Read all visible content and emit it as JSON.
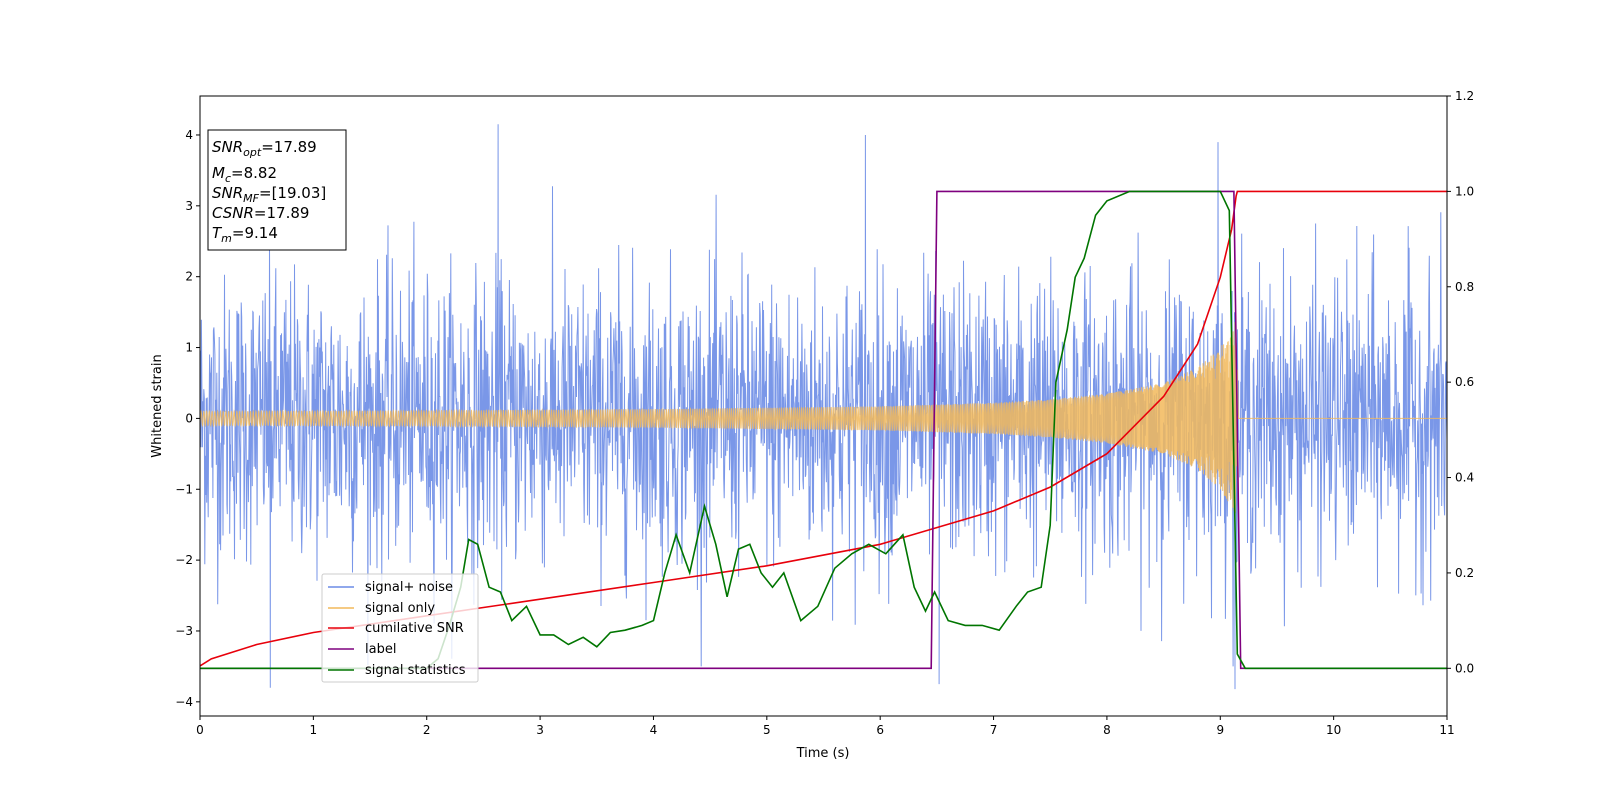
{
  "chart_data": {
    "type": "line",
    "xlabel": "Time (s)",
    "ylabel": "Whitened strain",
    "xlim": [
      0,
      11
    ],
    "ylim": [
      -4.2,
      4.55
    ],
    "y2lim": [
      -0.1,
      1.2
    ],
    "x_ticks": [
      "0",
      "1",
      "2",
      "3",
      "4",
      "5",
      "6",
      "7",
      "8",
      "9",
      "10",
      "11"
    ],
    "y_ticks": [
      "−4",
      "−3",
      "−2",
      "−1",
      "0",
      "1",
      "2",
      "3",
      "4"
    ],
    "y2_ticks": [
      "0.0",
      "0.2",
      "0.4",
      "0.6",
      "0.8",
      "1.0",
      "1.2"
    ],
    "grid": false,
    "legend_position": "lower-left",
    "annotation": {
      "snr_opt": "17.89",
      "mc": "8.82",
      "snr_mf": "[19.03]",
      "csnr": "17.89",
      "tm": "9.14"
    },
    "series": [
      {
        "name": "signal+ noise",
        "color": "#6b8ce6",
        "axis": "left",
        "envelope": {
          "x": [
            0,
            11
          ],
          "low": [
            -2.2,
            -2.2
          ],
          "high": [
            2.2,
            2.2
          ],
          "noise_sigma": 1.0
        },
        "extreme_spikes": [
          {
            "x": 2.63,
            "y": 4.15
          },
          {
            "x": 5.87,
            "y": 4.0
          },
          {
            "x": 8.98,
            "y": 3.9
          },
          {
            "x": 0.62,
            "y": -3.8
          },
          {
            "x": 6.52,
            "y": -3.75
          },
          {
            "x": 9.13,
            "y": -3.82
          }
        ]
      },
      {
        "name": "signal only",
        "color": "#f2b85a",
        "axis": "left",
        "envelope": {
          "x": [
            0,
            2,
            4,
            6,
            7,
            7.5,
            8,
            8.5,
            8.8,
            9.0,
            9.1,
            9.14,
            9.16,
            11
          ],
          "amplitude": [
            0.1,
            0.11,
            0.13,
            0.17,
            0.22,
            0.27,
            0.35,
            0.5,
            0.72,
            1.0,
            1.25,
            1.4,
            0,
            0
          ]
        }
      },
      {
        "name": "cumilative SNR",
        "color": "#e8000b",
        "axis": "right",
        "x": [
          0,
          0.1,
          0.5,
          1,
          2,
          3,
          4,
          5,
          6,
          7,
          7.5,
          8,
          8.5,
          8.8,
          9.0,
          9.1,
          9.14,
          9.15,
          11
        ],
        "values": [
          0.005,
          0.02,
          0.05,
          0.075,
          0.11,
          0.145,
          0.18,
          0.215,
          0.26,
          0.33,
          0.38,
          0.45,
          0.57,
          0.68,
          0.82,
          0.92,
          0.99,
          1.0,
          1.0
        ]
      },
      {
        "name": "label",
        "color": "#7f007f",
        "axis": "right",
        "x": [
          0,
          6.45,
          6.5,
          9.12,
          9.18,
          11
        ],
        "values": [
          0,
          0,
          1,
          1,
          0,
          0
        ]
      },
      {
        "name": "signal statistics",
        "color": "#007500",
        "axis": "right",
        "x": [
          0,
          2.0,
          2.1,
          2.2,
          2.3,
          2.37,
          2.45,
          2.55,
          2.65,
          2.75,
          2.88,
          3.0,
          3.12,
          3.25,
          3.38,
          3.5,
          3.62,
          3.75,
          3.9,
          4.0,
          4.1,
          4.2,
          4.32,
          4.45,
          4.55,
          4.65,
          4.75,
          4.85,
          4.95,
          5.05,
          5.15,
          5.3,
          5.45,
          5.6,
          5.75,
          5.9,
          6.05,
          6.2,
          6.3,
          6.4,
          6.48,
          6.6,
          6.75,
          6.9,
          7.05,
          7.2,
          7.3,
          7.42,
          7.5,
          7.55,
          7.65,
          7.72,
          7.8,
          7.9,
          8.0,
          8.2,
          8.6,
          9.0,
          9.08,
          9.15,
          9.22,
          11
        ],
        "values": [
          0,
          0,
          0.02,
          0.09,
          0.17,
          0.27,
          0.26,
          0.17,
          0.16,
          0.1,
          0.13,
          0.07,
          0.07,
          0.05,
          0.065,
          0.045,
          0.075,
          0.08,
          0.09,
          0.1,
          0.2,
          0.28,
          0.2,
          0.34,
          0.26,
          0.15,
          0.25,
          0.26,
          0.2,
          0.17,
          0.2,
          0.1,
          0.13,
          0.21,
          0.24,
          0.26,
          0.24,
          0.28,
          0.17,
          0.12,
          0.16,
          0.1,
          0.09,
          0.09,
          0.08,
          0.13,
          0.16,
          0.17,
          0.3,
          0.6,
          0.71,
          0.82,
          0.86,
          0.95,
          0.98,
          1.0,
          1.0,
          1.0,
          0.96,
          0.03,
          0.0,
          0.0
        ]
      }
    ]
  }
}
